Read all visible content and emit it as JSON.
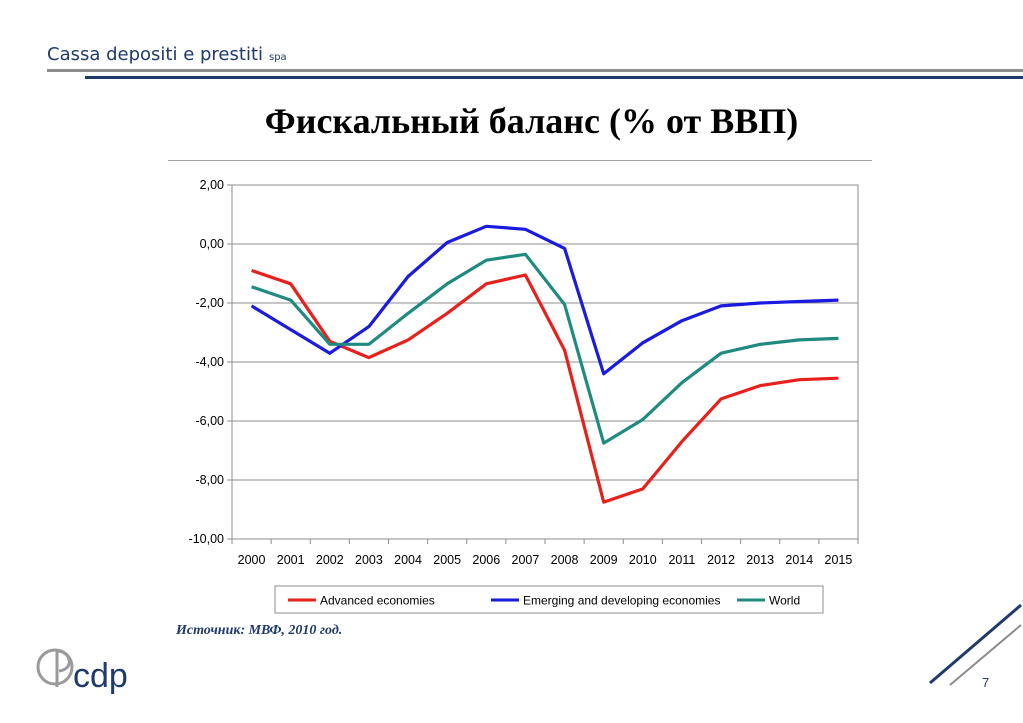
{
  "header": {
    "brand": "Cassa depositi e prestiti",
    "brand_suffix": "spa"
  },
  "slide": {
    "title": "Фискальный баланс (% от ВВП)",
    "source": "Источник: МВФ, 2010 год.",
    "page_number": "7"
  },
  "logo": {
    "text": "cdp",
    "icon": "cdp-monogram-icon"
  },
  "chart_data": {
    "type": "line",
    "x": [
      "2000",
      "2001",
      "2002",
      "2003",
      "2004",
      "2005",
      "2006",
      "2007",
      "2008",
      "2009",
      "2010",
      "2011",
      "2012",
      "2013",
      "2014",
      "2015"
    ],
    "y_ticks": [
      "2,00",
      "0,00",
      "-2,00",
      "-4,00",
      "-6,00",
      "-8,00",
      "-10,00"
    ],
    "ylim": [
      -10,
      2
    ],
    "grid": true,
    "legend_position": "bottom",
    "series": [
      {
        "name": "Advanced economies",
        "color": "#e8201c",
        "values": [
          -0.9,
          -1.35,
          -3.3,
          -3.85,
          -3.25,
          -2.35,
          -1.35,
          -1.05,
          -3.6,
          -8.75,
          -8.3,
          -6.7,
          -5.25,
          -4.8,
          -4.6,
          -4.55
        ]
      },
      {
        "name": "Emerging and developing economies",
        "color": "#1a1ae0",
        "values": [
          -2.1,
          -2.9,
          -3.7,
          -2.8,
          -1.1,
          0.05,
          0.6,
          0.5,
          -0.15,
          -4.4,
          -3.35,
          -2.6,
          -2.1,
          -2.0,
          -1.95,
          -1.9
        ]
      },
      {
        "name": "World",
        "color": "#1f8a80",
        "values": [
          -1.45,
          -1.9,
          -3.4,
          -3.4,
          -2.35,
          -1.35,
          -0.55,
          -0.35,
          -2.05,
          -6.75,
          -5.95,
          -4.7,
          -3.7,
          -3.4,
          -3.25,
          -3.2
        ]
      }
    ]
  }
}
